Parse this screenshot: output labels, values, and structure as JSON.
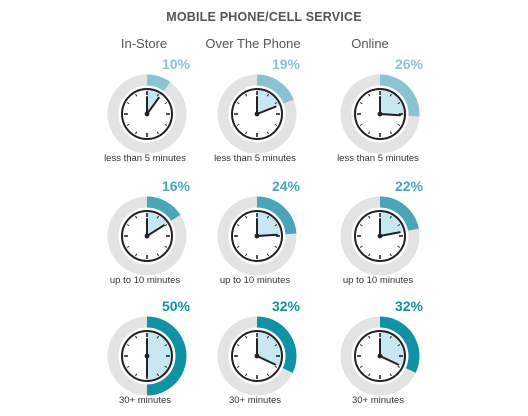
{
  "chart_data": {
    "type": "gauge-grid",
    "title": "MOBILE PHONE/CELL SERVICE",
    "columns": [
      "In-Store",
      "Over The Phone",
      "Online"
    ],
    "rows": [
      "less than 5 minutes",
      "up to 10 minutes",
      "30+ minutes"
    ],
    "cells": [
      [
        {
          "value": 10,
          "label": "10%",
          "caption": "less than 5 minutes"
        },
        {
          "value": 19,
          "label": "19%",
          "caption": "less than 5 minutes"
        },
        {
          "value": 26,
          "label": "26%",
          "caption": "less than 5 minutes"
        }
      ],
      [
        {
          "value": 16,
          "label": "16%",
          "caption": "up to 10 minutes"
        },
        {
          "value": 24,
          "label": "24%",
          "caption": "up to 10 minutes"
        },
        {
          "value": 22,
          "label": "22%",
          "caption": "up to 10 minutes"
        }
      ],
      [
        {
          "value": 50,
          "label": "50%",
          "caption": "30+ minutes"
        },
        {
          "value": 32,
          "label": "32%",
          "caption": "30+ minutes"
        },
        {
          "value": 32,
          "label": "32%",
          "caption": "30+ minutes"
        }
      ]
    ],
    "row_colors": [
      "#8cc3d3",
      "#4aa5b8",
      "#1192a4"
    ],
    "track_color": "#e3e3e3",
    "clock_fill_color": "#c9e6f3"
  }
}
